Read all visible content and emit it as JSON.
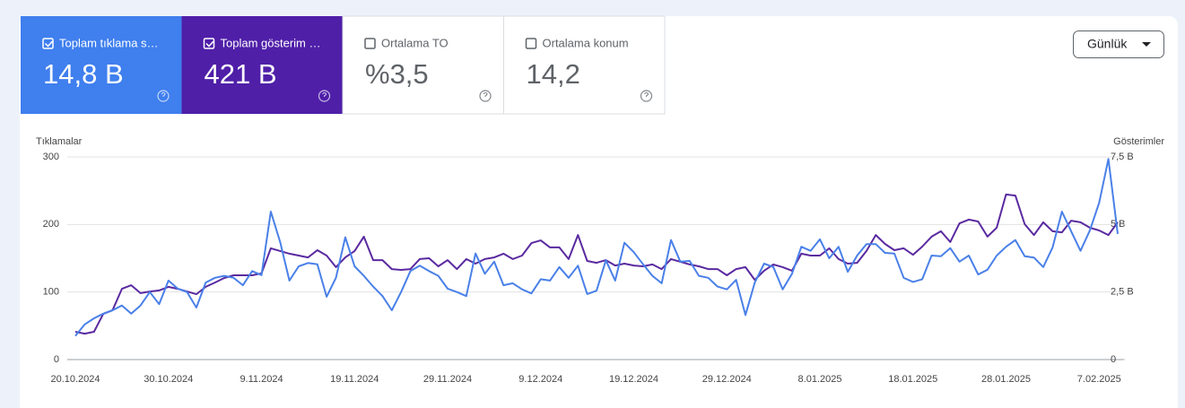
{
  "cards": [
    {
      "label": "Toplam tıklama s…",
      "value": "14,8 B",
      "checked": true
    },
    {
      "label": "Toplam gösterim …",
      "value": "421 B",
      "checked": true
    },
    {
      "label": "Ortalama TO",
      "value": "%3,5",
      "checked": false
    },
    {
      "label": "Ortalama konum",
      "value": "14,2",
      "checked": false
    }
  ],
  "dropdown": "Günlük",
  "chart_data": {
    "type": "line",
    "y_label": "Tıklamalar",
    "y2_label": "Gösterimler",
    "x": [
      "20.10.2024",
      "21.10.2024",
      "22.10.2024",
      "23.10.2024",
      "24.10.2024",
      "25.10.2024",
      "26.10.2024",
      "27.10.2024",
      "28.10.2024",
      "29.10.2024",
      "30.10.2024",
      "31.10.2024",
      "1.11.2024",
      "2.11.2024",
      "3.11.2024",
      "4.11.2024",
      "5.11.2024",
      "6.11.2024",
      "7.11.2024",
      "8.11.2024",
      "9.11.2024",
      "10.11.2024",
      "11.11.2024",
      "12.11.2024",
      "13.11.2024",
      "14.11.2024",
      "15.11.2024",
      "16.11.2024",
      "17.11.2024",
      "18.11.2024",
      "19.11.2024",
      "20.11.2024",
      "21.11.2024",
      "22.11.2024",
      "23.11.2024",
      "24.11.2024",
      "25.11.2024",
      "26.11.2024",
      "27.11.2024",
      "28.11.2024",
      "29.11.2024",
      "30.11.2024",
      "1.12.2024",
      "2.12.2024",
      "3.12.2024",
      "4.12.2024",
      "5.12.2024",
      "6.12.2024",
      "7.12.2024",
      "8.12.2024",
      "9.12.2024",
      "10.12.2024",
      "11.12.2024",
      "12.12.2024",
      "13.12.2024",
      "14.12.2024",
      "15.12.2024",
      "16.12.2024",
      "17.12.2024",
      "18.12.2024",
      "19.12.2024",
      "20.12.2024",
      "21.12.2024",
      "22.12.2024",
      "23.12.2024",
      "24.12.2024",
      "25.12.2024",
      "26.12.2024",
      "27.12.2024",
      "28.12.2024",
      "29.12.2024",
      "30.12.2024",
      "31.12.2024",
      "1.01.2025",
      "2.01.2025",
      "3.01.2025",
      "4.01.2025",
      "5.01.2025",
      "6.01.2025",
      "7.01.2025",
      "8.01.2025",
      "9.01.2025",
      "10.01.2025",
      "11.01.2025",
      "12.01.2025",
      "13.01.2025",
      "14.01.2025",
      "15.01.2025",
      "16.01.2025",
      "17.01.2025",
      "18.01.2025",
      "19.01.2025",
      "20.01.2025",
      "21.01.2025",
      "22.01.2025",
      "23.01.2025",
      "24.01.2025",
      "25.01.2025",
      "26.01.2025",
      "27.01.2025",
      "28.01.2025",
      "29.01.2025",
      "30.01.2025",
      "31.01.2025",
      "1.02.2025",
      "2.02.2025",
      "3.02.2025",
      "4.02.2025",
      "5.02.2025",
      "6.02.2025",
      "7.02.2025",
      "8.02.2025",
      "9.02.2025"
    ],
    "series": [
      {
        "color": "#4a80e8",
        "axis": "y",
        "values": [
          35,
          52,
          61,
          68,
          73,
          80,
          68,
          80,
          100,
          82,
          117,
          105,
          100,
          77,
          114,
          121,
          124,
          121,
          110,
          131,
          125,
          219,
          174,
          117,
          138,
          143,
          141,
          93,
          121,
          181,
          138,
          124,
          108,
          94,
          73,
          100,
          131,
          139,
          131,
          124,
          105,
          100,
          94,
          157,
          127,
          145,
          110,
          113,
          104,
          98,
          119,
          117,
          137,
          121,
          139,
          97,
          102,
          147,
          117,
          173,
          159,
          141,
          124,
          113,
          177,
          145,
          146,
          124,
          121,
          108,
          104,
          118,
          66,
          114,
          142,
          137,
          104,
          127,
          167,
          161,
          178,
          150,
          167,
          130,
          154,
          171,
          171,
          158,
          157,
          121,
          115,
          119,
          154,
          153,
          165,
          145,
          154,
          126,
          133,
          154,
          167,
          177,
          153,
          151,
          137,
          166,
          219,
          190,
          161,
          191,
          232,
          297,
          186
        ]
      },
      {
        "color": "#5a2aa0",
        "axis": "y2",
        "values": [
          1.03,
          0.96,
          1.03,
          1.69,
          1.83,
          2.62,
          2.75,
          2.46,
          2.52,
          2.56,
          2.69,
          2.62,
          2.52,
          2.42,
          2.69,
          2.85,
          3.02,
          3.12,
          3.12,
          3.12,
          3.19,
          4.12,
          4.02,
          3.92,
          3.85,
          3.78,
          4.05,
          3.85,
          3.42,
          3.78,
          4.02,
          4.55,
          3.68,
          3.68,
          3.35,
          3.32,
          3.35,
          3.72,
          3.75,
          3.45,
          3.68,
          3.35,
          3.72,
          3.55,
          3.72,
          3.78,
          3.92,
          3.72,
          3.85,
          4.31,
          4.41,
          4.15,
          4.15,
          3.72,
          4.61,
          3.65,
          3.58,
          3.68,
          3.48,
          3.55,
          3.48,
          3.45,
          3.52,
          3.35,
          3.72,
          3.62,
          3.52,
          3.45,
          3.35,
          3.35,
          3.12,
          3.35,
          3.42,
          2.95,
          3.29,
          3.52,
          3.42,
          3.29,
          3.92,
          3.85,
          3.85,
          4.12,
          3.72,
          3.55,
          3.58,
          4.02,
          4.61,
          4.28,
          4.05,
          4.12,
          3.88,
          4.18,
          4.55,
          4.75,
          4.35,
          5.04,
          5.18,
          5.11,
          4.55,
          4.88,
          6.11,
          6.07,
          5.01,
          4.61,
          5.08,
          4.75,
          4.71,
          5.14,
          5.08,
          4.88,
          4.78,
          4.61,
          5.08
        ]
      }
    ],
    "ylim": [
      0,
      300
    ],
    "yticks": [
      0,
      100,
      200,
      300
    ],
    "y2lim": [
      0,
      7.5
    ],
    "y2ticks": [
      0,
      {
        "value": 2.5,
        "label": "2,5 B"
      },
      {
        "value": 5,
        "label": "5 B"
      },
      {
        "value": 7.5,
        "label": "7,5 B"
      }
    ],
    "grid": true
  }
}
